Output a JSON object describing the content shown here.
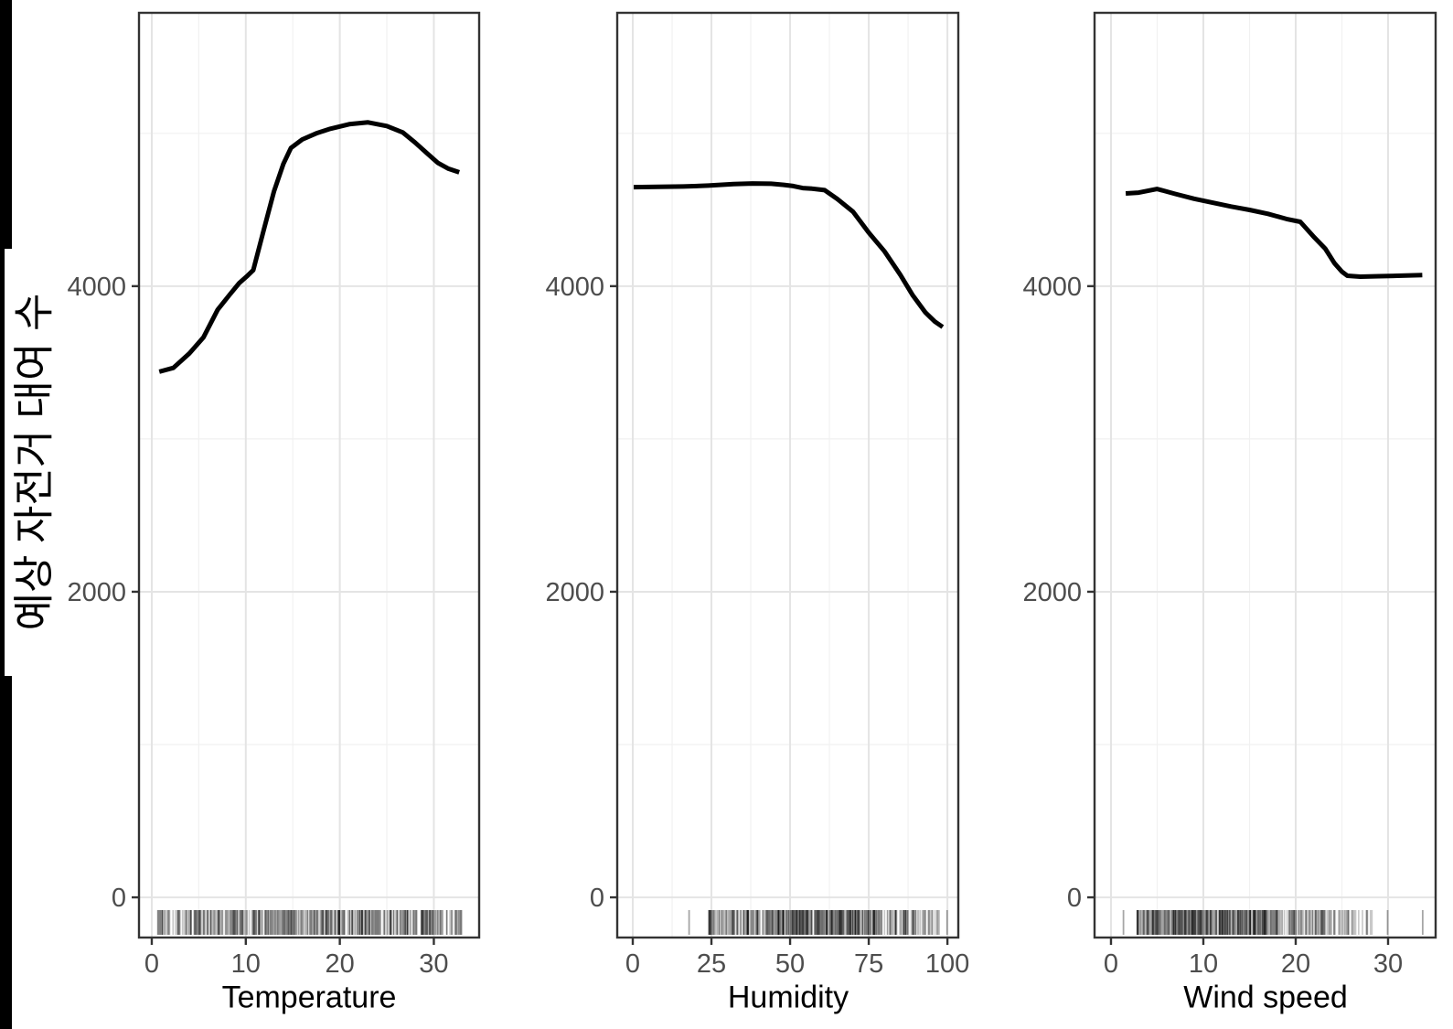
{
  "figure": {
    "y_axis_title": "예상 자전거 대여 수",
    "background": "#ffffff",
    "colors": {
      "line": "#000000",
      "panel_border": "#333333",
      "grid_major": "#e4e4e4",
      "grid_minor": "#f1f1f1",
      "tick": "#333333",
      "tick_label": "#4d4d4d",
      "axis_title": "#000000",
      "rug": "rgba(0,0,0,0.22)",
      "edge_bar": "#000000"
    }
  },
  "chart_data": [
    {
      "type": "line",
      "xlabel": "Temperature",
      "ylabel": "예상 자전거 대여 수",
      "x_ticks_major": [
        0,
        10,
        20,
        30
      ],
      "x_ticks_minor": [
        5,
        15,
        25
      ],
      "y_ticks_major": [
        0,
        2000,
        4000
      ],
      "y_ticks_minor": [
        1000,
        3000,
        5000
      ],
      "x_range": [
        -1.36,
        34.82
      ],
      "y_range": [
        -263,
        5789
      ],
      "grid": true,
      "legend": "none",
      "x": [
        0.8,
        2.3,
        4,
        5.5,
        7,
        8.3,
        9.3,
        10.2,
        10.8,
        12,
        13,
        14,
        14.8,
        16,
        17.5,
        19,
        21,
        23,
        25,
        26.7,
        28,
        29.2,
        30.4,
        31.5,
        32.7
      ],
      "y": [
        3440,
        3465,
        3560,
        3665,
        3845,
        3945,
        4020,
        4070,
        4105,
        4390,
        4620,
        4800,
        4905,
        4960,
        5000,
        5030,
        5060,
        5072,
        5048,
        5006,
        4940,
        4874,
        4808,
        4770,
        4745
      ],
      "rug": {
        "count": 500,
        "seed": 11,
        "clusters": [
          [
            0.3,
            2,
            0.05
          ],
          [
            2,
            28,
            0.8
          ],
          [
            28,
            30.5,
            0.09
          ],
          [
            30.5,
            33,
            0.05
          ]
        ],
        "outliers": [
          32.9
        ]
      }
    },
    {
      "type": "line",
      "xlabel": "Humidity",
      "x_ticks_major": [
        0,
        25,
        50,
        75,
        100
      ],
      "x_ticks_minor": [
        12.5,
        37.5,
        62.5,
        87.5
      ],
      "y_ticks_major": [
        0,
        2000,
        4000
      ],
      "y_ticks_minor": [
        1000,
        3000,
        5000
      ],
      "x_range": [
        -4.94,
        103.46
      ],
      "y_range": [
        -263,
        5789
      ],
      "grid": true,
      "legend": "none",
      "x": [
        0.3,
        8,
        16,
        24,
        32,
        38,
        44,
        48,
        51,
        54,
        57,
        61,
        65,
        70,
        75,
        80,
        85,
        89,
        93,
        96,
        98.5
      ],
      "y": [
        4648,
        4650,
        4652,
        4658,
        4668,
        4672,
        4670,
        4663,
        4655,
        4642,
        4638,
        4628,
        4570,
        4487,
        4350,
        4228,
        4075,
        3940,
        3828,
        3768,
        3733
      ],
      "rug": {
        "count": 480,
        "seed": 23,
        "clusters": [
          [
            24,
            30,
            0.06
          ],
          [
            30,
            42,
            0.14
          ],
          [
            42,
            78,
            0.62
          ],
          [
            78,
            90,
            0.12
          ],
          [
            90,
            97.5,
            0.05
          ]
        ],
        "outliers": [
          17.9,
          99.9
        ]
      }
    },
    {
      "type": "line",
      "xlabel": "Wind speed",
      "x_ticks_major": [
        0,
        10,
        20,
        30
      ],
      "x_ticks_minor": [
        5,
        15,
        25
      ],
      "y_ticks_major": [
        0,
        2000,
        4000
      ],
      "y_ticks_minor": [
        1000,
        3000,
        5000
      ],
      "x_range": [
        -1.78,
        35.15
      ],
      "y_range": [
        -263,
        5789
      ],
      "grid": true,
      "legend": "none",
      "x": [
        1.6,
        3,
        5,
        7,
        9,
        11,
        13,
        15,
        17,
        19,
        20.5,
        22,
        23.2,
        24.2,
        25,
        25.6,
        27,
        29,
        31,
        33.7
      ],
      "y": [
        4607,
        4612,
        4636,
        4603,
        4572,
        4546,
        4521,
        4499,
        4473,
        4440,
        4421,
        4320,
        4245,
        4150,
        4095,
        4068,
        4062,
        4065,
        4068,
        4072
      ],
      "rug": {
        "count": 480,
        "seed": 37,
        "clusters": [
          [
            2.8,
            17,
            0.72
          ],
          [
            17,
            22,
            0.16
          ],
          [
            22,
            26,
            0.08
          ],
          [
            26,
            28.5,
            0.03
          ]
        ],
        "outliers": [
          1.35,
          29.95,
          33.75
        ]
      }
    }
  ]
}
